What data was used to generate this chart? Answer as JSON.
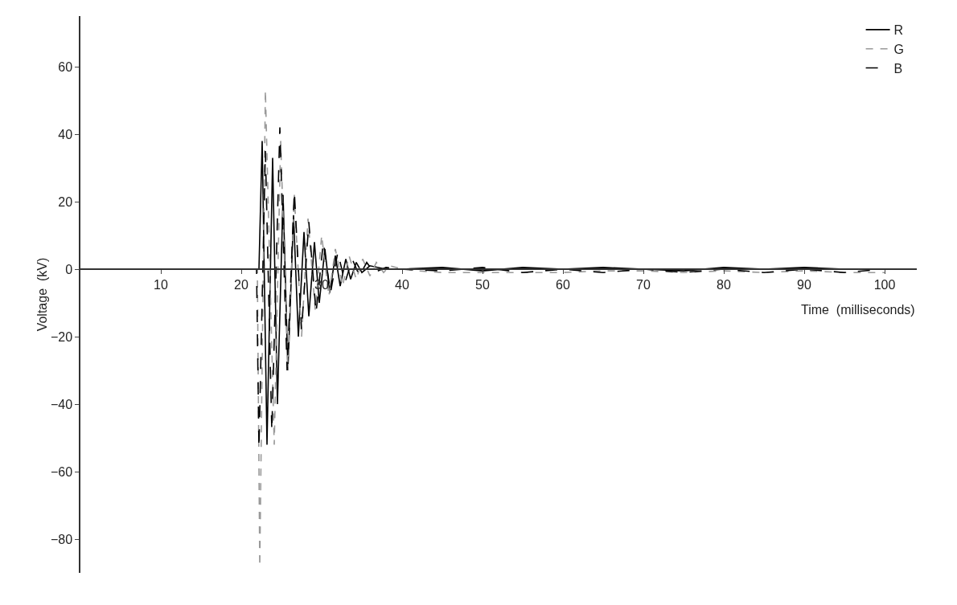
{
  "chart_data": {
    "type": "line",
    "xlabel": "Time  (milliseconds)",
    "ylabel": "Voltage  (kV)",
    "xlim": [
      0,
      104
    ],
    "ylim": [
      -90,
      75
    ],
    "xticks": [
      10,
      20,
      30,
      40,
      50,
      60,
      70,
      80,
      90,
      100
    ],
    "yticks": [
      -80,
      -60,
      -40,
      -20,
      0,
      20,
      40,
      60
    ],
    "grid": false,
    "legend": "top right",
    "marker": "none",
    "series": [
      {
        "name": "R",
        "color": "#000000",
        "line_style": "solid",
        "x": [
          0,
          22.2,
          22.6,
          23.2,
          23.9,
          24.5,
          25.2,
          25.8,
          26.5,
          27.1,
          27.8,
          28.4,
          29.1,
          29.7,
          30.4,
          31,
          31.7,
          32.3,
          33,
          33.6,
          34.3,
          35,
          36,
          38,
          40,
          45,
          50,
          55,
          60,
          65,
          70,
          75,
          80,
          85,
          90,
          95,
          100
        ],
        "values": [
          0,
          0,
          38,
          -52,
          33,
          -40,
          22,
          -30,
          16,
          -20,
          11,
          -14,
          8,
          -10,
          6,
          -7,
          4,
          -5,
          3,
          -3,
          2,
          -1,
          1,
          0,
          0,
          0.5,
          -0.5,
          0.5,
          0,
          0.5,
          0,
          -0.5,
          0.5,
          0,
          0.5,
          0,
          0
        ]
      },
      {
        "name": "G",
        "color": "#999999",
        "line_style": "dashed",
        "x": [
          0,
          22,
          22.3,
          23,
          24.1,
          24.9,
          25.8,
          26.6,
          27.5,
          28.3,
          29.2,
          30,
          30.9,
          31.7,
          32.6,
          33.4,
          34.3,
          35.1,
          36,
          36.8,
          37.7,
          38.5,
          40,
          42,
          45,
          50,
          55,
          60,
          65,
          70,
          75,
          80,
          85,
          90,
          95,
          100
        ],
        "values": [
          0,
          0,
          -88,
          53,
          -52,
          38,
          -30,
          22,
          -20,
          15,
          -12,
          10,
          -8,
          6,
          -5,
          4,
          -3,
          3,
          -2,
          2,
          -1,
          1,
          0,
          -0.5,
          -1,
          -1,
          -1,
          -1,
          -0.5,
          -0.5,
          -1,
          -0.5,
          -1,
          -0.5,
          -1,
          -1
        ]
      },
      {
        "name": "B",
        "color": "#000000",
        "line_style": "dashed",
        "x": [
          0,
          21.9,
          22.2,
          23,
          23.8,
          24.8,
          25.7,
          26.6,
          27.5,
          28.4,
          29.3,
          30.2,
          31.1,
          32,
          32.9,
          33.8,
          34.7,
          35.6,
          36.5,
          38,
          40,
          45,
          50,
          55,
          60,
          65,
          70,
          75,
          80,
          85,
          90,
          95,
          100
        ],
        "values": [
          0,
          0,
          -53,
          35,
          -48,
          42,
          -30,
          23,
          -18,
          14,
          -13,
          8,
          -7,
          5,
          -4,
          3,
          -2,
          2,
          -1,
          0.5,
          0,
          -0.5,
          0.5,
          -1,
          0,
          -1,
          0,
          -1,
          0,
          -1,
          0,
          -1,
          0
        ]
      }
    ]
  }
}
